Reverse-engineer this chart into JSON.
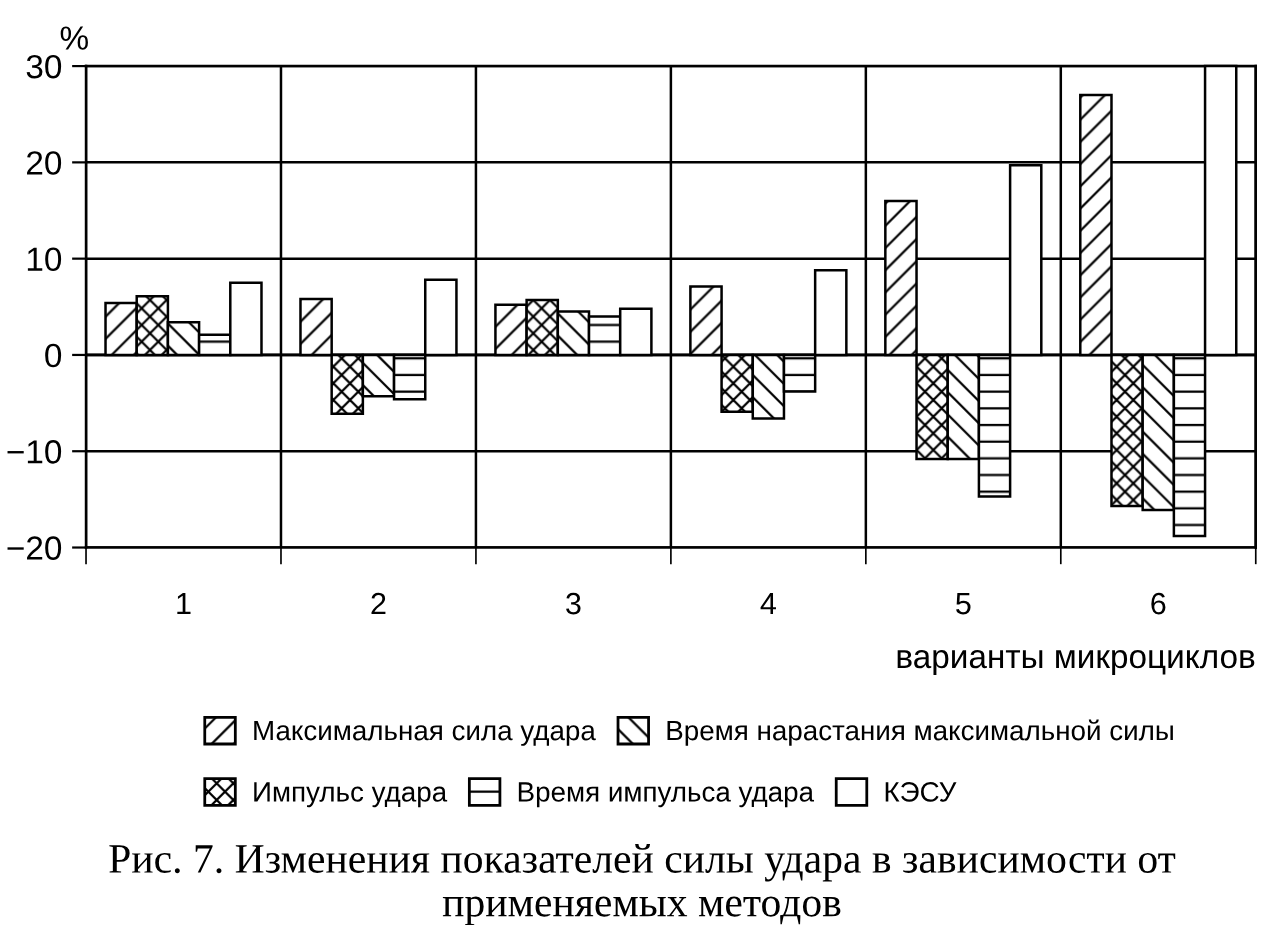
{
  "chart_data": {
    "type": "bar",
    "title": "Рис. 7. Изменения показателей силы удара в зависимости от применяемых методов",
    "ylabel": "%",
    "xlabel": "варианты микроциклов",
    "categories": [
      "1",
      "2",
      "3",
      "4",
      "5",
      "6"
    ],
    "series": [
      {
        "name": "Максимальная сила удара",
        "color": "#000000",
        "values": [
          5.4,
          5.8,
          5.2,
          7.1,
          16.0,
          27.0
        ]
      },
      {
        "name": "Импульс удара",
        "color": "#000000",
        "values": [
          6.1,
          -6.1,
          5.7,
          -5.9,
          -10.8,
          -15.7
        ]
      },
      {
        "name": "Время нарастания максимальной силы",
        "color": "#000000",
        "values": [
          3.4,
          -4.3,
          4.5,
          -6.6,
          -10.8,
          -16.1
        ]
      },
      {
        "name": "Время импульса удара",
        "color": "#000000",
        "values": [
          2.1,
          -4.6,
          4.0,
          -3.8,
          -14.7,
          -18.8
        ]
      },
      {
        "name": "КЭСУ",
        "color": "#000000",
        "values": [
          7.5,
          7.8,
          4.8,
          8.8,
          19.7,
          30
        ]
      }
    ],
    "ylim": [
      -20,
      30
    ],
    "yticks": [
      {
        "value": -20,
        "label": "−20"
      },
      {
        "value": -10,
        "label": "−10"
      },
      0,
      10,
      20,
      30
    ],
    "grid": true,
    "legend": "bottom"
  }
}
